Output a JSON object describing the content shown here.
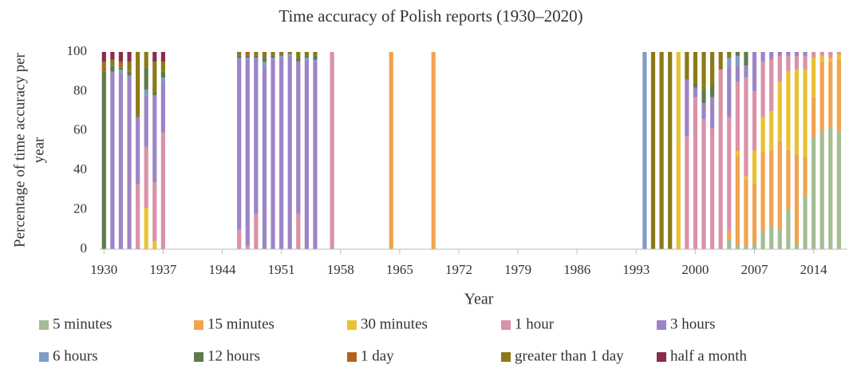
{
  "chart_data": {
    "type": "stacked_bar",
    "title": "Time accuracy of Polish reports (1930–2020)",
    "xlabel": "Year",
    "ylabel": [
      "Percentage of time accuracy per",
      "year"
    ],
    "x": [
      1930,
      1931,
      1932,
      1933,
      1934,
      1935,
      1936,
      1937,
      1946,
      1947,
      1948,
      1949,
      1950,
      1951,
      1952,
      1953,
      1954,
      1955,
      1957,
      1964,
      1969,
      1994,
      1995,
      1996,
      1997,
      1998,
      1999,
      2000,
      2001,
      2002,
      2003,
      2004,
      2005,
      2006,
      2007,
      2008,
      2009,
      2010,
      2011,
      2012,
      2013,
      2014,
      2015,
      2016,
      2017
    ],
    "xlim": [
      1929.5,
      2018
    ],
    "xticks": [
      1930,
      1937,
      1944,
      1951,
      1958,
      1965,
      1972,
      1979,
      1986,
      1993,
      2000,
      2007,
      2014
    ],
    "ylim": [
      0,
      100
    ],
    "yticks": [
      0,
      20,
      40,
      60,
      80,
      100
    ],
    "grid": false,
    "series": [
      {
        "name": "5 minutes",
        "color": "#a3bd94",
        "values": [
          0,
          0,
          0,
          0,
          0,
          0,
          0,
          0,
          0,
          0,
          0,
          0,
          0,
          0,
          0,
          0,
          0,
          0,
          0,
          0,
          0,
          0,
          0,
          0,
          0,
          0,
          0,
          0,
          0,
          0,
          0,
          5,
          2,
          2,
          3,
          9,
          12,
          10,
          20,
          3,
          27,
          57,
          60,
          62,
          60
        ]
      },
      {
        "name": "15 minutes",
        "color": "#f1a34f",
        "values": [
          0,
          0,
          0,
          0,
          0,
          0,
          0,
          0,
          0,
          0,
          0,
          0,
          0,
          0,
          0,
          0,
          0,
          0,
          0,
          100,
          100,
          0,
          0,
          0,
          0,
          0,
          0,
          0,
          0,
          0,
          0,
          4,
          45,
          33,
          30,
          40,
          38,
          45,
          30,
          45,
          20,
          20,
          35,
          33,
          36
        ]
      },
      {
        "name": "30 minutes",
        "color": "#e9c232",
        "values": [
          0,
          0,
          0,
          0,
          0,
          21,
          4,
          0,
          0,
          0,
          0,
          0,
          0,
          0,
          0,
          0,
          0,
          0,
          0,
          0,
          0,
          0,
          0,
          0,
          0,
          100,
          0,
          0,
          0,
          0,
          0,
          0,
          3,
          2,
          17,
          18,
          20,
          30,
          40,
          43,
          44,
          20,
          3,
          2,
          3
        ]
      },
      {
        "name": "1 hour",
        "color": "#da92a7",
        "values": [
          0,
          0,
          0,
          0,
          33,
          31,
          30,
          59,
          10,
          2,
          18,
          0,
          0,
          0,
          0,
          18,
          0,
          0,
          100,
          0,
          0,
          0,
          0,
          0,
          0,
          0,
          57,
          77,
          66,
          61,
          91,
          58,
          35,
          50,
          30,
          28,
          26,
          13,
          8,
          7,
          7,
          3,
          2,
          3,
          1
        ]
      },
      {
        "name": "3 hours",
        "color": "#9d84c7",
        "values": [
          0,
          90,
          89,
          88,
          34,
          26,
          44,
          26,
          87,
          94,
          79,
          92,
          96,
          97,
          98,
          77,
          96,
          95,
          0,
          0,
          0,
          0,
          0,
          0,
          0,
          0,
          29,
          5,
          8,
          16,
          0,
          26,
          8,
          6,
          20,
          5,
          4,
          2,
          2,
          2,
          2,
          0,
          0,
          0,
          0
        ]
      },
      {
        "name": "6 hours",
        "color": "#7f9cc5",
        "values": [
          0,
          0,
          2,
          0,
          0,
          3,
          0,
          2,
          0,
          1,
          0,
          3,
          1,
          1,
          1,
          0,
          1,
          1,
          0,
          0,
          0,
          100,
          0,
          0,
          0,
          0,
          0,
          0,
          0,
          0,
          0,
          4,
          5,
          0,
          0,
          0,
          0,
          0,
          0,
          0,
          0,
          0,
          0,
          0,
          0
        ]
      },
      {
        "name": "12 hours",
        "color": "#5f7a4b",
        "values": [
          90,
          3,
          1,
          2,
          0,
          11,
          2,
          3,
          1,
          1,
          1,
          2,
          1,
          0,
          0,
          2,
          1,
          2,
          0,
          0,
          0,
          0,
          0,
          0,
          0,
          0,
          0,
          2,
          7,
          6,
          0,
          0,
          2,
          7,
          0,
          0,
          0,
          0,
          0,
          0,
          0,
          0,
          0,
          0,
          0
        ]
      },
      {
        "name": "1 day",
        "color": "#b4631c",
        "values": [
          3,
          0,
          3,
          0,
          0,
          0,
          0,
          0,
          0,
          2,
          0,
          0,
          0,
          1,
          0,
          0,
          0,
          0,
          0,
          0,
          0,
          0,
          0,
          0,
          0,
          0,
          0,
          0,
          0,
          0,
          0,
          0,
          0,
          0,
          0,
          0,
          0,
          0,
          0,
          0,
          0,
          0,
          0,
          0,
          0
        ]
      },
      {
        "name": "greater than 1 day",
        "color": "#8b7a17",
        "values": [
          2,
          3,
          0,
          5,
          33,
          8,
          15,
          5,
          2,
          0,
          2,
          3,
          2,
          1,
          1,
          3,
          2,
          2,
          0,
          0,
          0,
          0,
          100,
          100,
          100,
          0,
          14,
          16,
          19,
          17,
          9,
          3,
          0,
          0,
          0,
          0,
          0,
          0,
          0,
          0,
          0,
          0,
          0,
          0,
          0
        ]
      },
      {
        "name": "half a month",
        "color": "#8c2b4c",
        "values": [
          5,
          4,
          5,
          5,
          0,
          0,
          5,
          5,
          0,
          0,
          0,
          0,
          0,
          0,
          0,
          0,
          0,
          0,
          0,
          0,
          0,
          0,
          0,
          0,
          0,
          0,
          0,
          0,
          0,
          0,
          0,
          0,
          0,
          0,
          0,
          0,
          0,
          0,
          0,
          0,
          0,
          0,
          0,
          0,
          0
        ]
      }
    ]
  }
}
